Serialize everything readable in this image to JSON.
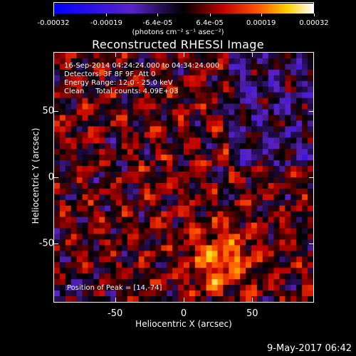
{
  "chart_data": {
    "type": "heatmap",
    "title": "Reconstructed RHESSI Image",
    "xlabel": "Heliocentric X (arcsec)",
    "ylabel": "Heliocentric Y (arcsec)",
    "xlim": [
      -95,
      95
    ],
    "ylim": [
      -95,
      95
    ],
    "x_ticks": [
      "-50",
      "0",
      "50"
    ],
    "y_ticks": [
      "50",
      "0",
      "-50"
    ],
    "x_tick_values": [
      -50,
      0,
      50
    ],
    "y_tick_values": [
      50,
      0,
      -50
    ],
    "colorbar": {
      "range": [
        -0.00032,
        0.00032
      ],
      "tick_labels": [
        "-0.00032",
        "-0.00019",
        "-6.4e-05",
        "6.4e-05",
        "0.00019",
        "0.00032"
      ],
      "tick_values": [
        -0.00032,
        -0.00019,
        -6.4e-05,
        6.4e-05,
        0.00019,
        0.00032
      ],
      "unit_label": "(photons cm⁻² s⁻¹ asec⁻²)",
      "colormap": "blue-purple-black-red-orange-yellow-white"
    },
    "annotations": {
      "time_range": "16-Sep-2014 04:24:24.000 to 04:34:24.000",
      "detectors": "Detectors: 3F 8F 9F, Att 0",
      "energy_range": "Energy Range: 12.0 - 25.0 keV",
      "clean": "Clean     Total counts: 4.09E+03",
      "peak": "Position of Peak = [14,-74]"
    },
    "peak_position": [
      14,
      -74
    ]
  },
  "footer": "9-May-2017 06:42",
  "colors": {
    "background": "#000000",
    "foreground": "#ffffff"
  }
}
